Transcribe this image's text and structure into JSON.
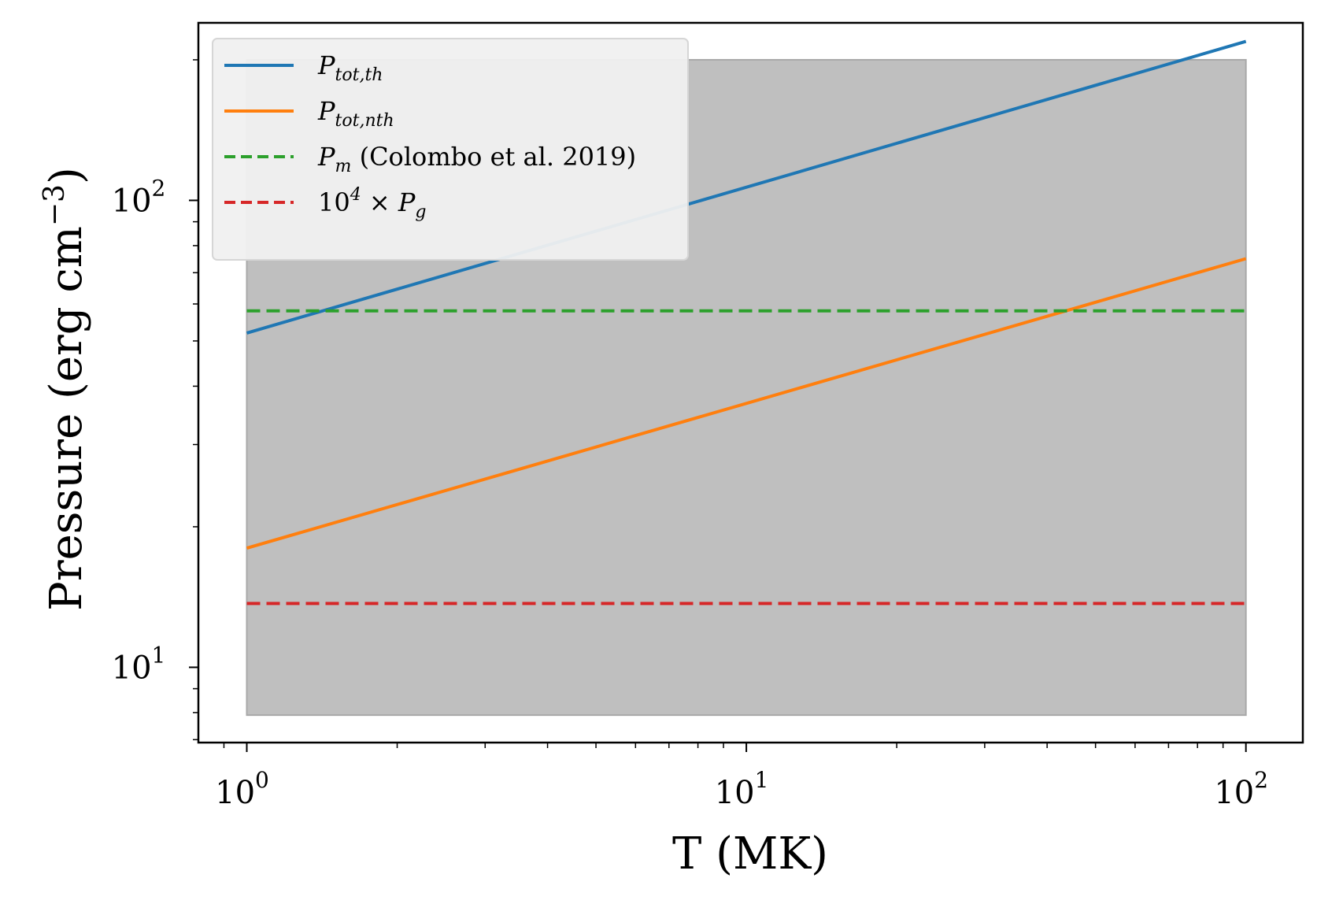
{
  "chart_data": {
    "type": "line",
    "xscale": "log",
    "yscale": "log",
    "xlabel": "T (MK)",
    "ylabel": "Pressure (erg   cm",
    "ylabel_exponent": "−3",
    "ylabel_close": ")",
    "xlim": [
      0.8,
      130
    ],
    "ylim": [
      6.9,
      240
    ],
    "x_ticks": [
      {
        "base": "10",
        "exp": "0",
        "value": 1
      },
      {
        "base": "10",
        "exp": "1",
        "value": 10
      },
      {
        "base": "10",
        "exp": "2",
        "value": 100
      }
    ],
    "y_ticks": [
      {
        "base": "10",
        "exp": "1",
        "value": 10
      },
      {
        "base": "10",
        "exp": "2",
        "value": 100
      }
    ],
    "shaded_region": {
      "x": [
        1,
        100
      ],
      "y": [
        7.9,
        200
      ],
      "color": "#bfbfbf"
    },
    "series": [
      {
        "name": "P_tot,th",
        "style": "solid",
        "color": "#1f77b4",
        "x": [
          1,
          100
        ],
        "y": [
          52,
          219
        ]
      },
      {
        "name": "P_tot,nth",
        "style": "solid",
        "color": "#ff7f0e",
        "x": [
          1,
          100
        ],
        "y": [
          18,
          75
        ]
      },
      {
        "name": "P_m (Colombo et al. 2019)",
        "style": "dashed",
        "color": "#2ca02c",
        "x": [
          1,
          100
        ],
        "y": [
          58,
          58
        ]
      },
      {
        "name": "10^4 × P_g",
        "style": "dashed",
        "color": "#d62728",
        "x": [
          1,
          100
        ],
        "y": [
          13.7,
          13.7
        ]
      }
    ],
    "legend": {
      "placement": "upper-left",
      "entries": [
        {
          "main": "P",
          "sub": "tot,th",
          "sup": "",
          "prefix": "",
          "suffix": ""
        },
        {
          "main": "P",
          "sub": "tot,nth",
          "sup": "",
          "prefix": "",
          "suffix": ""
        },
        {
          "main": "P",
          "sub": "m",
          "sup": "",
          "prefix": "",
          "suffix": " (Colombo et al. 2019)"
        },
        {
          "main": "P",
          "sub": "g",
          "sup": "4",
          "prefix": "10",
          "suffix": "",
          "times": " × "
        }
      ]
    }
  }
}
